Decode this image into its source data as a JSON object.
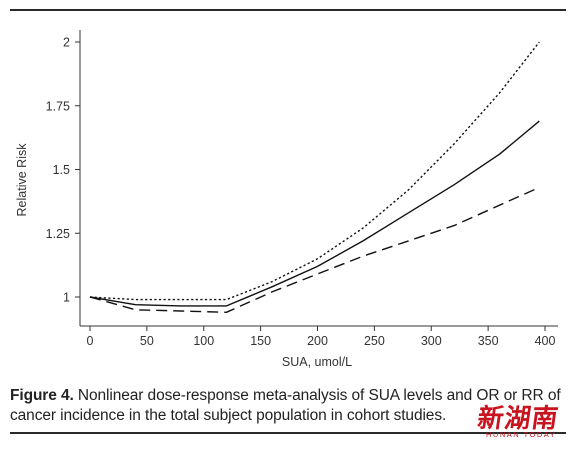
{
  "chart_data": {
    "type": "line",
    "xlabel": "SUA, umol/L",
    "ylabel": "Relative Risk",
    "xlim": [
      0,
      400
    ],
    "ylim": [
      0.9,
      2.05
    ],
    "x_ticks": [
      0,
      50,
      100,
      150,
      200,
      250,
      300,
      350,
      400
    ],
    "y_ticks": [
      1,
      1.25,
      1.5,
      1.75,
      2
    ],
    "y_tick_labels": [
      "1",
      "1.25",
      "1.5",
      "1.75",
      "2"
    ],
    "grid": false,
    "series": [
      {
        "style": "solid",
        "x": [
          0,
          40,
          80,
          120,
          160,
          200,
          240,
          280,
          320,
          360,
          395
        ],
        "y": [
          1.0,
          0.97,
          0.965,
          0.965,
          1.04,
          1.12,
          1.22,
          1.33,
          1.44,
          1.56,
          1.69
        ]
      },
      {
        "style": "dotted",
        "x": [
          0,
          40,
          80,
          120,
          160,
          200,
          240,
          280,
          320,
          360,
          395
        ],
        "y": [
          1.0,
          0.99,
          0.99,
          0.99,
          1.06,
          1.15,
          1.27,
          1.42,
          1.6,
          1.8,
          2.0
        ]
      },
      {
        "style": "dashed",
        "x": [
          0,
          40,
          80,
          120,
          160,
          200,
          240,
          280,
          320,
          360,
          395
        ],
        "y": [
          1.0,
          0.95,
          0.945,
          0.94,
          1.02,
          1.09,
          1.16,
          1.22,
          1.28,
          1.36,
          1.43
        ]
      }
    ]
  },
  "caption": {
    "figure_label": "Figure 4.",
    "text": " Nonlinear dose-response meta-analysis of SUA levels and OR or RR of cancer incidence in the total subject population in cohort studies."
  },
  "watermark": {
    "glyphs": "新湖南",
    "subtitle": "HUNAN TODAY",
    "color": "#c8141e"
  }
}
